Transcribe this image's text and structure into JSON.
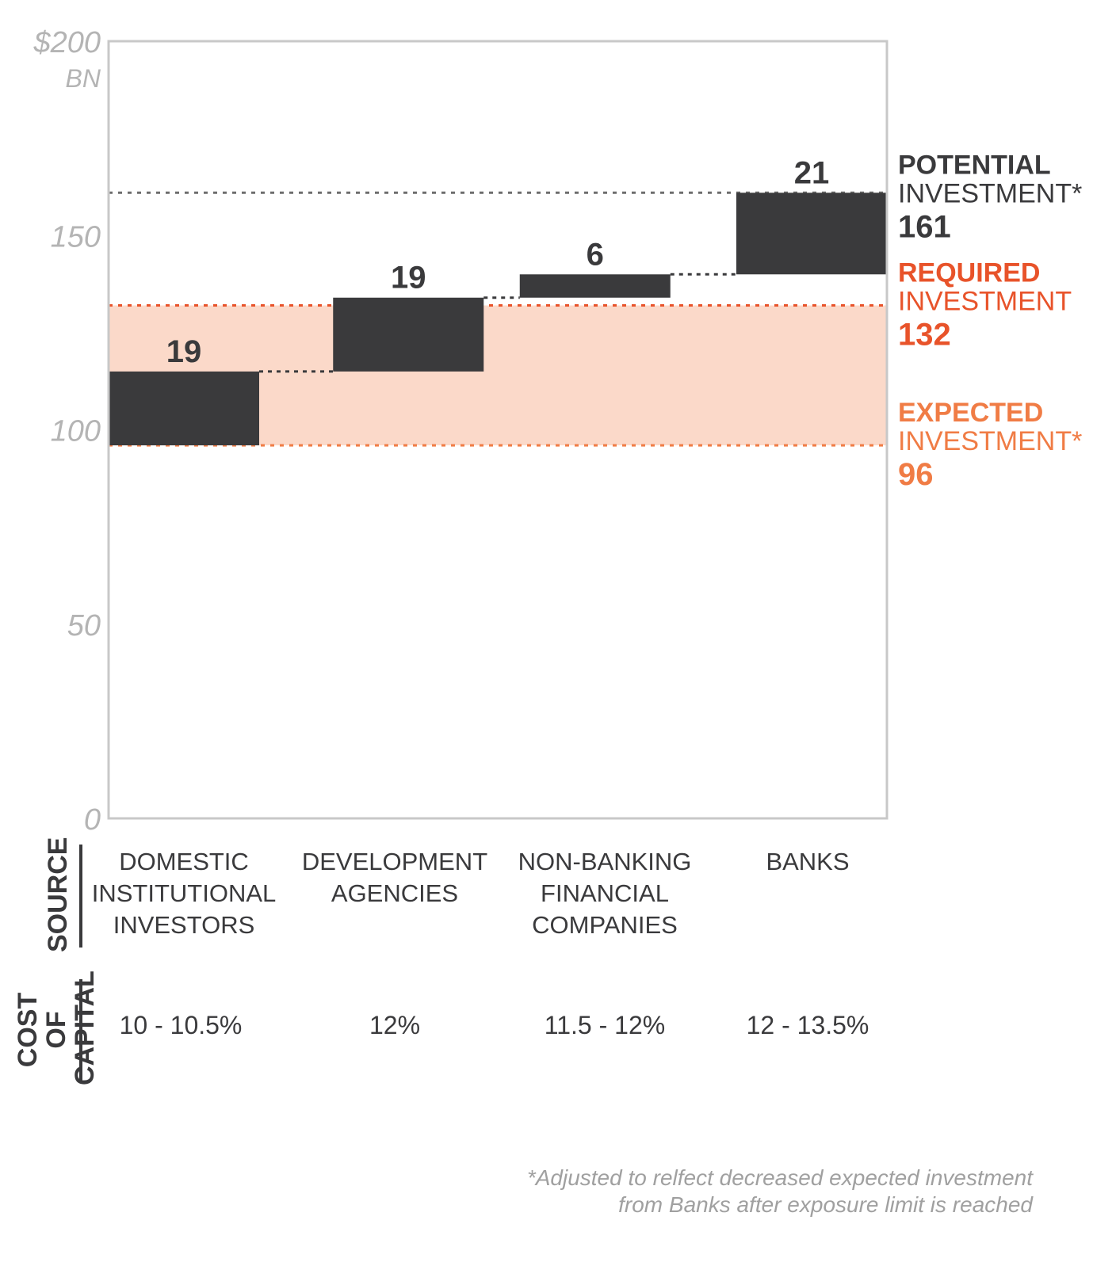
{
  "chart_data": {
    "type": "bar",
    "subtype": "waterfall",
    "y_axis": {
      "ticks": [
        "0",
        "50",
        "100",
        "150",
        "$200"
      ],
      "tick_values": [
        0,
        50,
        100,
        150,
        200
      ],
      "unit": "BN",
      "ylim": [
        0,
        200
      ]
    },
    "categories": [
      "DOMESTIC\nINSTITUTIONAL\nINVESTORS",
      "DEVELOPMENT\nAGENCIES",
      "NON-BANKING\nFINANCIAL\nCOMPANIES",
      "BANKS"
    ],
    "bars": [
      {
        "label": "19",
        "value": 19,
        "base": 96
      },
      {
        "label": "19",
        "value": 19,
        "base": 115
      },
      {
        "label": "6",
        "value": 6,
        "base": 134
      },
      {
        "label": "21",
        "value": 21,
        "base": 140
      }
    ],
    "markers": [
      {
        "title": "POTENTIAL",
        "subtitle": "INVESTMENT*",
        "value_label": "161",
        "value": 161,
        "color": "#3a3a3c",
        "line_color": "#6d6d6d"
      },
      {
        "title": "REQUIRED",
        "subtitle": "INVESTMENT",
        "value_label": "132",
        "value": 132,
        "color": "#e8532a",
        "line_color": "#e8532a"
      },
      {
        "title": "EXPECTED",
        "subtitle": "INVESTMENT*",
        "value_label": "96",
        "value": 96,
        "color": "#f07c45",
        "line_color": "#f07c45"
      }
    ],
    "band": {
      "from": 96,
      "to": 132,
      "color": "#fbd9c9"
    },
    "colors": {
      "bar": "#3a3a3c",
      "axis": "#c8c8c8",
      "connector": "#3a3a3c"
    },
    "grid": false
  },
  "rows": {
    "source_label": "SOURCE",
    "cost_label": "COST OF\nCAPITAL",
    "cost_of_capital": [
      "10 - 10.5%",
      "12%",
      "11.5 - 12%",
      "12 - 13.5%"
    ]
  },
  "footnote": "*Adjusted to relfect decreased expected investment\nfrom Banks after exposure limit is reached"
}
